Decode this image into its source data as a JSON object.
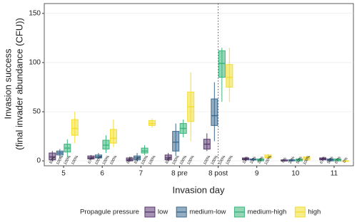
{
  "chart_data": {
    "type": "box",
    "ylabel": [
      "Invasion success",
      "(final invader abundance (CFU))"
    ],
    "xlabel": "Invasion day",
    "categories": [
      "5",
      "6",
      "7",
      "8 pre",
      "8 post",
      "9",
      "10",
      "11"
    ],
    "ylim": [
      -5,
      160
    ],
    "yticks": [
      0,
      50,
      100,
      150
    ],
    "grid": true,
    "legend_title": "Propagule pressure",
    "legend_position": "bottom",
    "series": [
      {
        "name": "low",
        "color": "#5b3a72",
        "values": [
          [
            0,
            1,
            4,
            8,
            10
          ],
          [
            1,
            2,
            3,
            5,
            6
          ],
          [
            0,
            0,
            1,
            3,
            4
          ],
          [
            0,
            1,
            3,
            6,
            8
          ],
          [
            10,
            12,
            17,
            22,
            28
          ],
          [
            0,
            1,
            2,
            3,
            4
          ],
          [
            0,
            0,
            0,
            1,
            1
          ],
          [
            0,
            1,
            2,
            3,
            4
          ]
        ],
        "success_labels": [
          "83%",
          "67%",
          "60%",
          "83%",
          "100%",
          "33%",
          "0%",
          "67%"
        ]
      },
      {
        "name": "medium-low",
        "color": "#3b6a8f",
        "values": [
          [
            3,
            6,
            8,
            10,
            12
          ],
          [
            2,
            3,
            4,
            6,
            8
          ],
          [
            0,
            1,
            3,
            5,
            8
          ],
          [
            5,
            10,
            19,
            30,
            38
          ],
          [
            20,
            36,
            46,
            63,
            80
          ],
          [
            0,
            1,
            1,
            2,
            3
          ],
          [
            0,
            0,
            1,
            1,
            2
          ],
          [
            0,
            0,
            1,
            2,
            3
          ]
        ],
        "success_labels": [
          "100%",
          "100%",
          "83%",
          "100%",
          "100%",
          "33%",
          "33%",
          "50%"
        ]
      },
      {
        "name": "medium-high",
        "color": "#3cb47c",
        "values": [
          [
            4,
            9,
            13,
            17,
            22
          ],
          [
            8,
            12,
            16,
            21,
            26
          ],
          [
            6,
            8,
            10,
            13,
            16
          ],
          [
            24,
            28,
            33,
            38,
            42
          ],
          [
            60,
            85,
            99,
            112,
            115
          ],
          [
            0,
            0,
            1,
            2,
            3
          ],
          [
            0,
            0,
            1,
            2,
            3
          ],
          [
            0,
            0,
            1,
            2,
            2
          ]
        ],
        "success_labels": [
          "100%",
          "100%",
          "100%",
          "100%",
          "100%",
          "33%",
          "50%",
          "67%"
        ]
      },
      {
        "name": "high",
        "color": "#f3de2c",
        "values": [
          [
            18,
            26,
            33,
            42,
            50
          ],
          [
            14,
            18,
            23,
            32,
            42
          ],
          [
            34,
            36,
            38,
            41,
            43
          ],
          [
            20,
            40,
            55,
            70,
            90
          ],
          [
            60,
            75,
            85,
            98,
            115
          ],
          [
            2,
            3,
            4,
            6,
            7
          ],
          [
            0,
            1,
            3,
            4,
            5
          ],
          [
            0,
            0,
            0,
            0,
            0
          ]
        ],
        "success_labels": [
          "100%",
          "100%",
          "100%",
          "100%",
          "100%",
          "100%",
          "100%",
          "0%"
        ]
      }
    ]
  }
}
